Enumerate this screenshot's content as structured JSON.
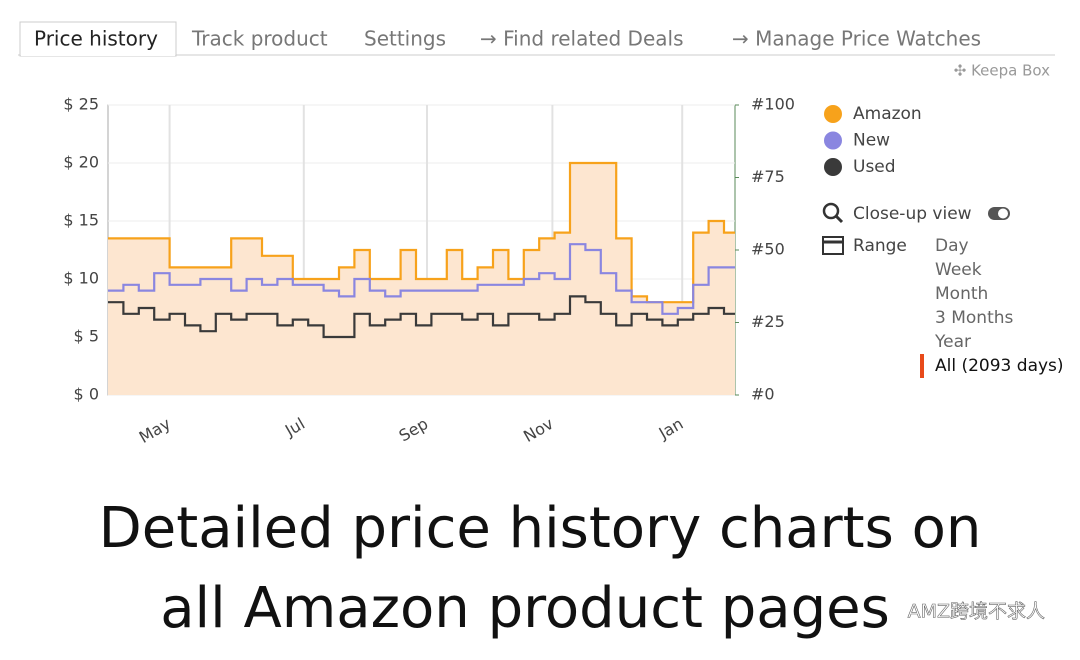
{
  "tabs": [
    "Price history",
    "Track product",
    "Settings",
    "→ Find related Deals",
    "→ Manage Price Watches"
  ],
  "box_label": "✣ Keepa Box",
  "chart_data": {
    "type": "step",
    "x": [
      0,
      7,
      14,
      21,
      28,
      35,
      42,
      49,
      56,
      63,
      70,
      77,
      84,
      91,
      98,
      105,
      112,
      119,
      126,
      133,
      140,
      147,
      154,
      161,
      168,
      175,
      182,
      189,
      196,
      203,
      210,
      217,
      224,
      231,
      238,
      245,
      252,
      259,
      266,
      273,
      280
    ],
    "xlim": [
      0,
      285
    ],
    "xticks": [
      {
        "value": 28,
        "label": "May"
      },
      {
        "value": 89,
        "label": "Jul"
      },
      {
        "value": 145,
        "label": "Sep"
      },
      {
        "value": 202,
        "label": "Nov"
      },
      {
        "value": 261,
        "label": "Jan"
      }
    ],
    "ylim": [
      0,
      25
    ],
    "yticks": [
      {
        "value": 0,
        "label": "$ 0"
      },
      {
        "value": 5,
        "label": "$ 5"
      },
      {
        "value": 10,
        "label": "$ 10"
      },
      {
        "value": 15,
        "label": "$ 15"
      },
      {
        "value": 20,
        "label": "$ 20"
      },
      {
        "value": 25,
        "label": "$ 25"
      }
    ],
    "y2lim": [
      0,
      100
    ],
    "y2ticks": [
      {
        "value": 0,
        "label": "#0"
      },
      {
        "value": 25,
        "label": "#25"
      },
      {
        "value": 50,
        "label": "#50"
      },
      {
        "value": 75,
        "label": "#75"
      },
      {
        "value": 100,
        "label": "#100"
      }
    ],
    "grid": true,
    "series": [
      {
        "name": "Amazon",
        "color": "#f7a21b",
        "fill": "#fde6d0",
        "values": [
          13.5,
          13.5,
          13.5,
          13.5,
          11,
          11,
          11,
          11,
          13.5,
          13.5,
          12,
          12,
          10,
          10,
          10,
          11,
          12.5,
          10,
          10,
          12.5,
          10,
          10,
          12.5,
          10,
          11,
          12.5,
          10,
          12.5,
          13.5,
          14,
          20,
          20,
          20,
          13.5,
          8.5,
          8,
          8,
          8,
          14,
          15,
          14
        ]
      },
      {
        "name": "New",
        "color": "#8a86e0",
        "values": [
          9,
          9.5,
          9,
          10.5,
          9.5,
          9.5,
          10,
          10,
          9,
          10,
          9.5,
          10,
          9.5,
          9.5,
          9,
          8.5,
          10,
          9,
          8.5,
          9,
          9,
          9,
          9,
          9,
          9.5,
          9.5,
          9.5,
          10,
          10.5,
          10,
          13,
          12.5,
          10.5,
          9,
          8,
          8,
          7,
          7.5,
          9.5,
          11,
          11
        ]
      },
      {
        "name": "Used",
        "color": "#3a3a3a",
        "values": [
          8,
          7,
          7.5,
          6.5,
          7,
          6,
          5.5,
          7,
          6.5,
          7,
          7,
          6,
          6.5,
          6,
          5,
          5,
          7,
          6,
          6.5,
          7,
          6,
          7,
          7,
          6.5,
          7,
          6,
          7,
          7,
          6.5,
          7,
          8.5,
          8,
          7,
          6,
          7,
          6.5,
          6,
          6.5,
          7,
          7.5,
          7
        ]
      }
    ]
  },
  "close_up_view": "Close-up view",
  "range_label": "Range",
  "range_options": [
    "Day",
    "Week",
    "Month",
    "3 Months",
    "Year",
    "All (2093 days)"
  ],
  "caption": [
    "Detailed price history charts on",
    "all Amazon product pages"
  ],
  "watermark": "AMZ跨境不求人"
}
